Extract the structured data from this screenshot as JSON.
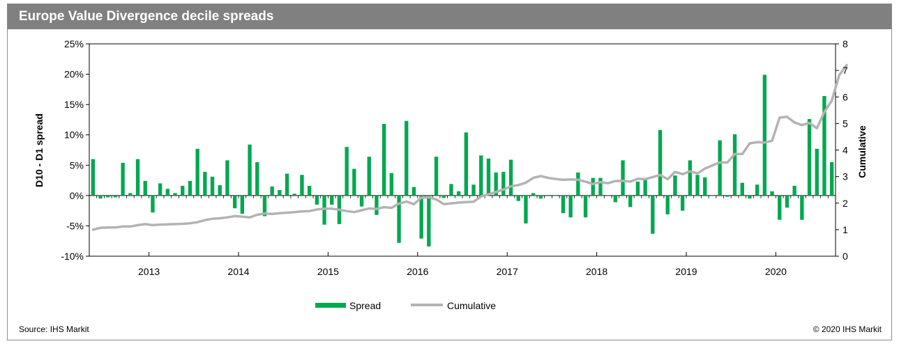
{
  "header": {
    "title": "Europe Value Divergence decile spreads"
  },
  "footer": {
    "source": "Source: IHS Markit",
    "copyright": "© 2020 IHS Markit"
  },
  "colors": {
    "spread": "#00a84f",
    "cumulative": "#b3b3b3",
    "title_bar": "#808080"
  },
  "chart_data": {
    "type": "bar",
    "title": "Europe Value Divergence decile spreads",
    "ylabel": "D10 - D1 spread",
    "y2label": "Cumulative",
    "ylim": [
      -10,
      25
    ],
    "y_ticks": [
      "-10%",
      "-5%",
      "0%",
      "5%",
      "10%",
      "15%",
      "20%",
      "25%"
    ],
    "y2lim": [
      0,
      8
    ],
    "y2_ticks": [
      "0",
      "1",
      "2",
      "3",
      "4",
      "5",
      "6",
      "7",
      "8"
    ],
    "x_start": "2012-05",
    "x_tick_labels": [
      "2013",
      "2014",
      "2015",
      "2016",
      "2017",
      "2018",
      "2019",
      "2020"
    ],
    "grid": false,
    "legend_position": "bottom",
    "series": [
      {
        "name": "Spread",
        "type": "bar",
        "values": [
          6.0,
          -0.5,
          -0.3,
          -0.3,
          5.4,
          0.4,
          6.0,
          2.4,
          -2.8,
          2.0,
          1.1,
          0.4,
          1.6,
          2.4,
          7.7,
          3.9,
          3.1,
          1.7,
          5.8,
          -2.1,
          -3.0,
          8.4,
          5.5,
          -3.4,
          1.5,
          0.9,
          3.6,
          0.3,
          3.4,
          1.6,
          -1.5,
          -4.8,
          -1.5,
          -4.7,
          8.0,
          4.4,
          -1.8,
          6.4,
          -3.2,
          11.8,
          3.7,
          -7.8,
          12.3,
          1.4,
          -7.1,
          -8.4,
          6.4,
          -0.4,
          1.9,
          0.7,
          10.4,
          1.8,
          6.6,
          6.1,
          3.8,
          3.9,
          5.9,
          -0.9,
          -4.6,
          0.4,
          -0.5,
          -0.1,
          0.0,
          -2.9,
          -3.6,
          3.8,
          -3.6,
          2.9,
          2.9,
          0.0,
          -1.1,
          5.8,
          -1.9,
          2.3,
          2.8,
          -6.3,
          10.8,
          -3.1,
          3.3,
          -2.5,
          5.8,
          3.4,
          3.0,
          0.0,
          9.1,
          -0.2,
          10.1,
          2.1,
          -0.5,
          1.8,
          19.9,
          0.7,
          -4.0,
          -2.0,
          1.6,
          -4.0,
          12.6,
          7.7,
          16.4,
          5.5
        ]
      },
      {
        "name": "Cumulative",
        "type": "line",
        "values": [
          1.0,
          1.07,
          1.08,
          1.08,
          1.12,
          1.12,
          1.17,
          1.21,
          1.17,
          1.19,
          1.2,
          1.21,
          1.22,
          1.24,
          1.28,
          1.36,
          1.41,
          1.43,
          1.46,
          1.51,
          1.49,
          1.46,
          1.56,
          1.61,
          1.59,
          1.62,
          1.64,
          1.66,
          1.69,
          1.7,
          1.76,
          1.79,
          1.79,
          1.75,
          1.7,
          1.66,
          1.73,
          1.8,
          1.78,
          1.85,
          1.82,
          1.98,
          2.06,
          1.96,
          2.2,
          2.22,
          2.14,
          1.96,
          1.99,
          2.02,
          2.04,
          2.05,
          2.25,
          2.33,
          2.42,
          2.51,
          2.63,
          2.68,
          2.77,
          2.95,
          3.02,
          2.95,
          2.91,
          2.88,
          2.89,
          2.88,
          2.81,
          2.72,
          2.79,
          2.75,
          2.83,
          2.84,
          2.81,
          2.92,
          2.9,
          2.98,
          3.06,
          2.9,
          3.18,
          3.09,
          3.2,
          3.12,
          3.3,
          3.42,
          3.53,
          3.53,
          3.85,
          3.85,
          4.25,
          4.3,
          4.28,
          4.35,
          5.22,
          5.25,
          5.04,
          4.94,
          5.02,
          4.82,
          5.43,
          5.86,
          6.82,
          7.2
        ]
      }
    ]
  }
}
